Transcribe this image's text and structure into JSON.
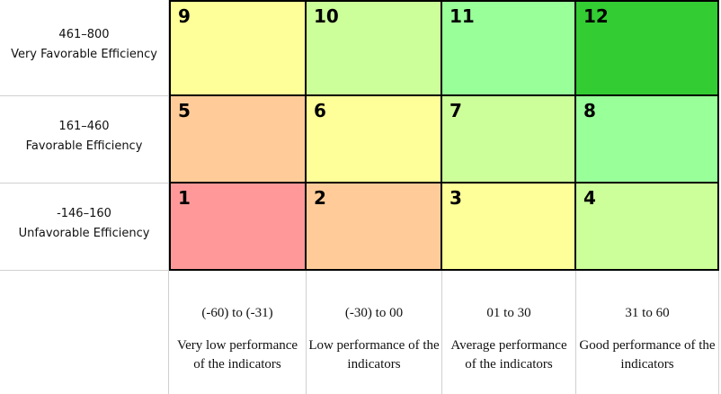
{
  "rows": [
    {
      "range": "461–800",
      "label": "Very Favorable Efficiency"
    },
    {
      "range": "161–460",
      "label": "Favorable Efficiency"
    },
    {
      "range": "-146–160",
      "label": "Unfavorable Efficiency"
    }
  ],
  "columns": [
    {
      "range": "(-60) to (-31)",
      "desc": "Very low performance of the indicators"
    },
    {
      "range": "(-30) to 00",
      "desc": "Low performance of the indicators"
    },
    {
      "range": "01 to 30",
      "desc": "Average performance of the indicators"
    },
    {
      "range": "31 to 60",
      "desc": "Good performance of the indicators"
    }
  ],
  "cells": [
    [
      {
        "n": "9",
        "color": "#ffff99"
      },
      {
        "n": "10",
        "color": "#ccff99"
      },
      {
        "n": "11",
        "color": "#99ff99"
      },
      {
        "n": "12",
        "color": "#33cc33"
      }
    ],
    [
      {
        "n": "5",
        "color": "#ffcc99"
      },
      {
        "n": "6",
        "color": "#ffff99"
      },
      {
        "n": "7",
        "color": "#ccff99"
      },
      {
        "n": "8",
        "color": "#99ff99"
      }
    ],
    [
      {
        "n": "1",
        "color": "#ff9999"
      },
      {
        "n": "2",
        "color": "#ffcc99"
      },
      {
        "n": "3",
        "color": "#ffff99"
      },
      {
        "n": "4",
        "color": "#ccff99"
      }
    ]
  ]
}
